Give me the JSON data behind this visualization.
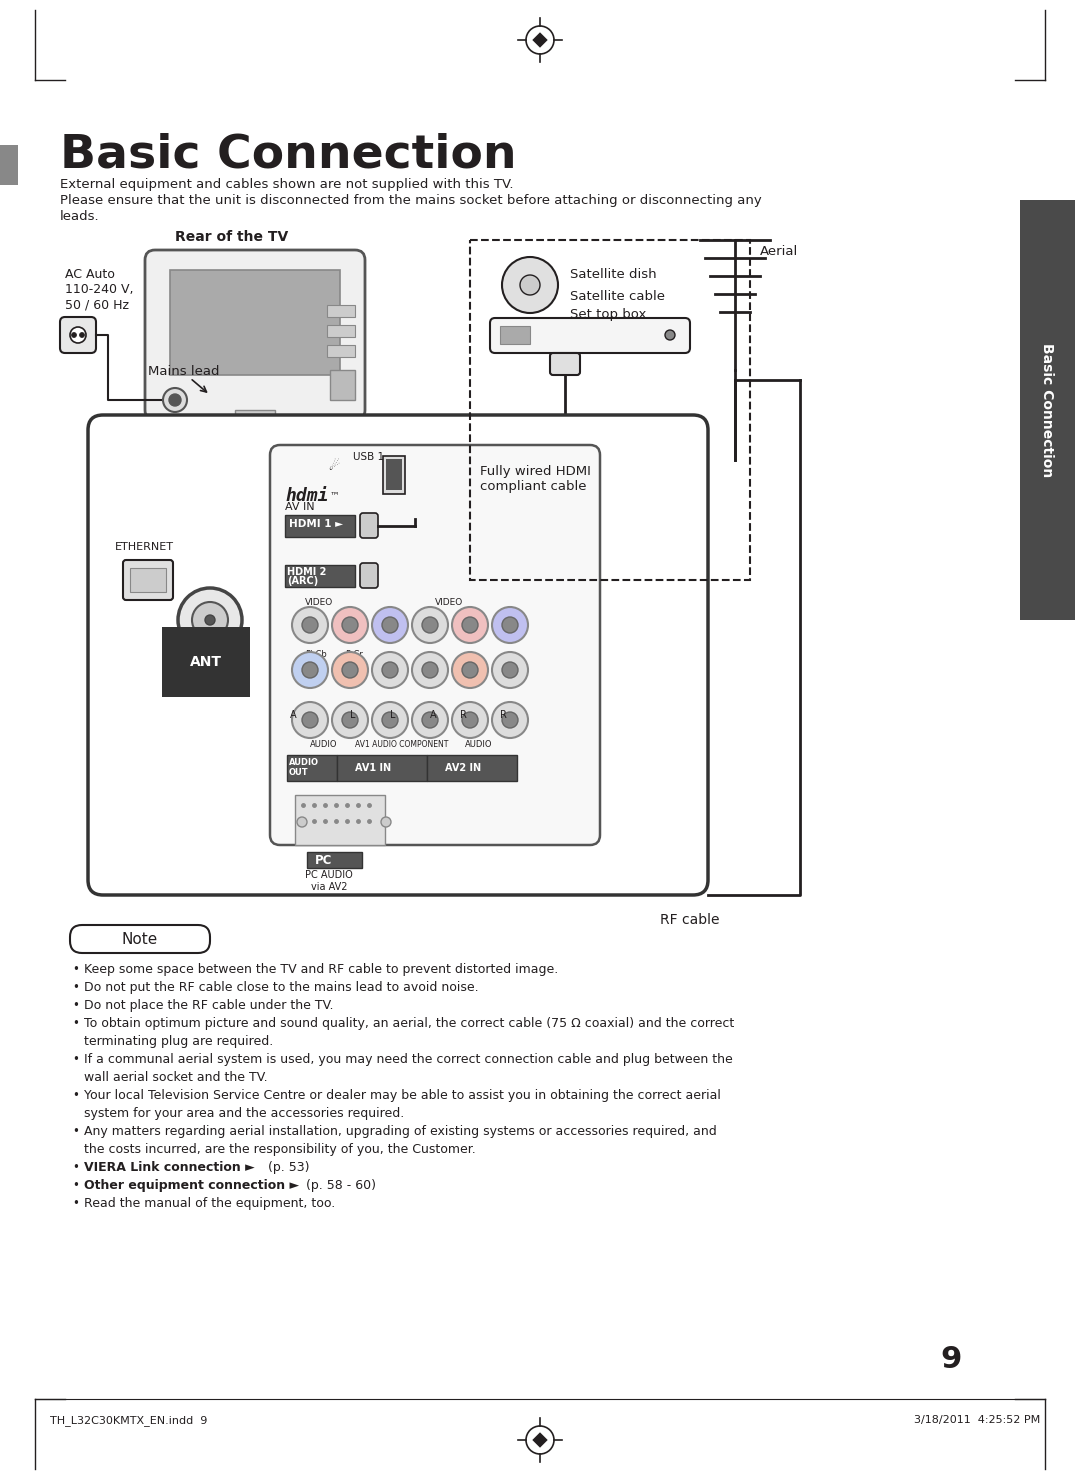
{
  "title": "Basic Connection",
  "subtitle_line1": "External equipment and cables shown are not supplied with this TV.",
  "subtitle_line2": "Please ensure that the unit is disconnected from the mains socket before attaching or disconnecting any",
  "subtitle_line3": "leads.",
  "rear_tv_label": "Rear of the TV",
  "ac_auto_label": "AC Auto\n110-240 V,\n50 / 60 Hz",
  "mains_lead_label": "Mains lead",
  "satellite_dish_label": "Satellite dish",
  "satellite_cable_label": "Satellite cable",
  "set_top_box_label": "Set top box",
  "aerial_label": "Aerial",
  "hdmi_label": "Fully wired HDMI\ncompliant cable",
  "rf_cable_label": "RF cable",
  "ethernet_label": "ETHERNET",
  "ant_label": "ANT",
  "hdmi1_label": "HDMI 1",
  "hdmi2_label": "HDMI 2\n(ARC)",
  "usb_label": "USB 1",
  "pc_label": "PC",
  "pc_audio_label": "PC AUDIO\nvia AV2",
  "audio_out_label": "AUDIO\nOUT",
  "av1_in_label": "AV1 IN",
  "av2_in_label": "AV2 IN",
  "note_label": "Note",
  "note_items": [
    "Keep some space between the TV and RF cable to prevent distorted image.",
    "Do not put the RF cable close to the mains lead to avoid noise.",
    "Do not place the RF cable under the TV.",
    "To obtain optimum picture and sound quality, an aerial, the correct cable (75 Ω coaxial) and the correct\n  terminating plug are required.",
    "If a communal aerial system is used, you may need the correct connection cable and plug between the\n  wall aerial socket and the TV.",
    "Your local Television Service Centre or dealer may be able to assist you in obtaining the correct aerial\n  system for your area and the accessories required.",
    "Any matters regarding aerial installation, upgrading of existing systems or accessories required, and\n  the costs incurred, are the responsibility of you, the Customer.",
    "VIERA Link connection ► (p. 53)",
    "Other equipment connection ► (p. 58 - 60)",
    "Read the manual of the equipment, too."
  ],
  "viera_bold": "VIERA Link connection ►",
  "viera_bold_suffix": " (p. 53)",
  "other_bold": "Other equipment connection ►",
  "other_bold_suffix": " (p. 58 - 60)",
  "page_number": "9",
  "footer_left": "TH_L32C30KMTX_EN.indd  9",
  "footer_right": "3/18/2011  4:25:52 PM",
  "bg_color": "#ffffff",
  "text_color": "#231f20",
  "sidebar_color": "#4a4a4a",
  "note_bg": "#f0f0f0"
}
